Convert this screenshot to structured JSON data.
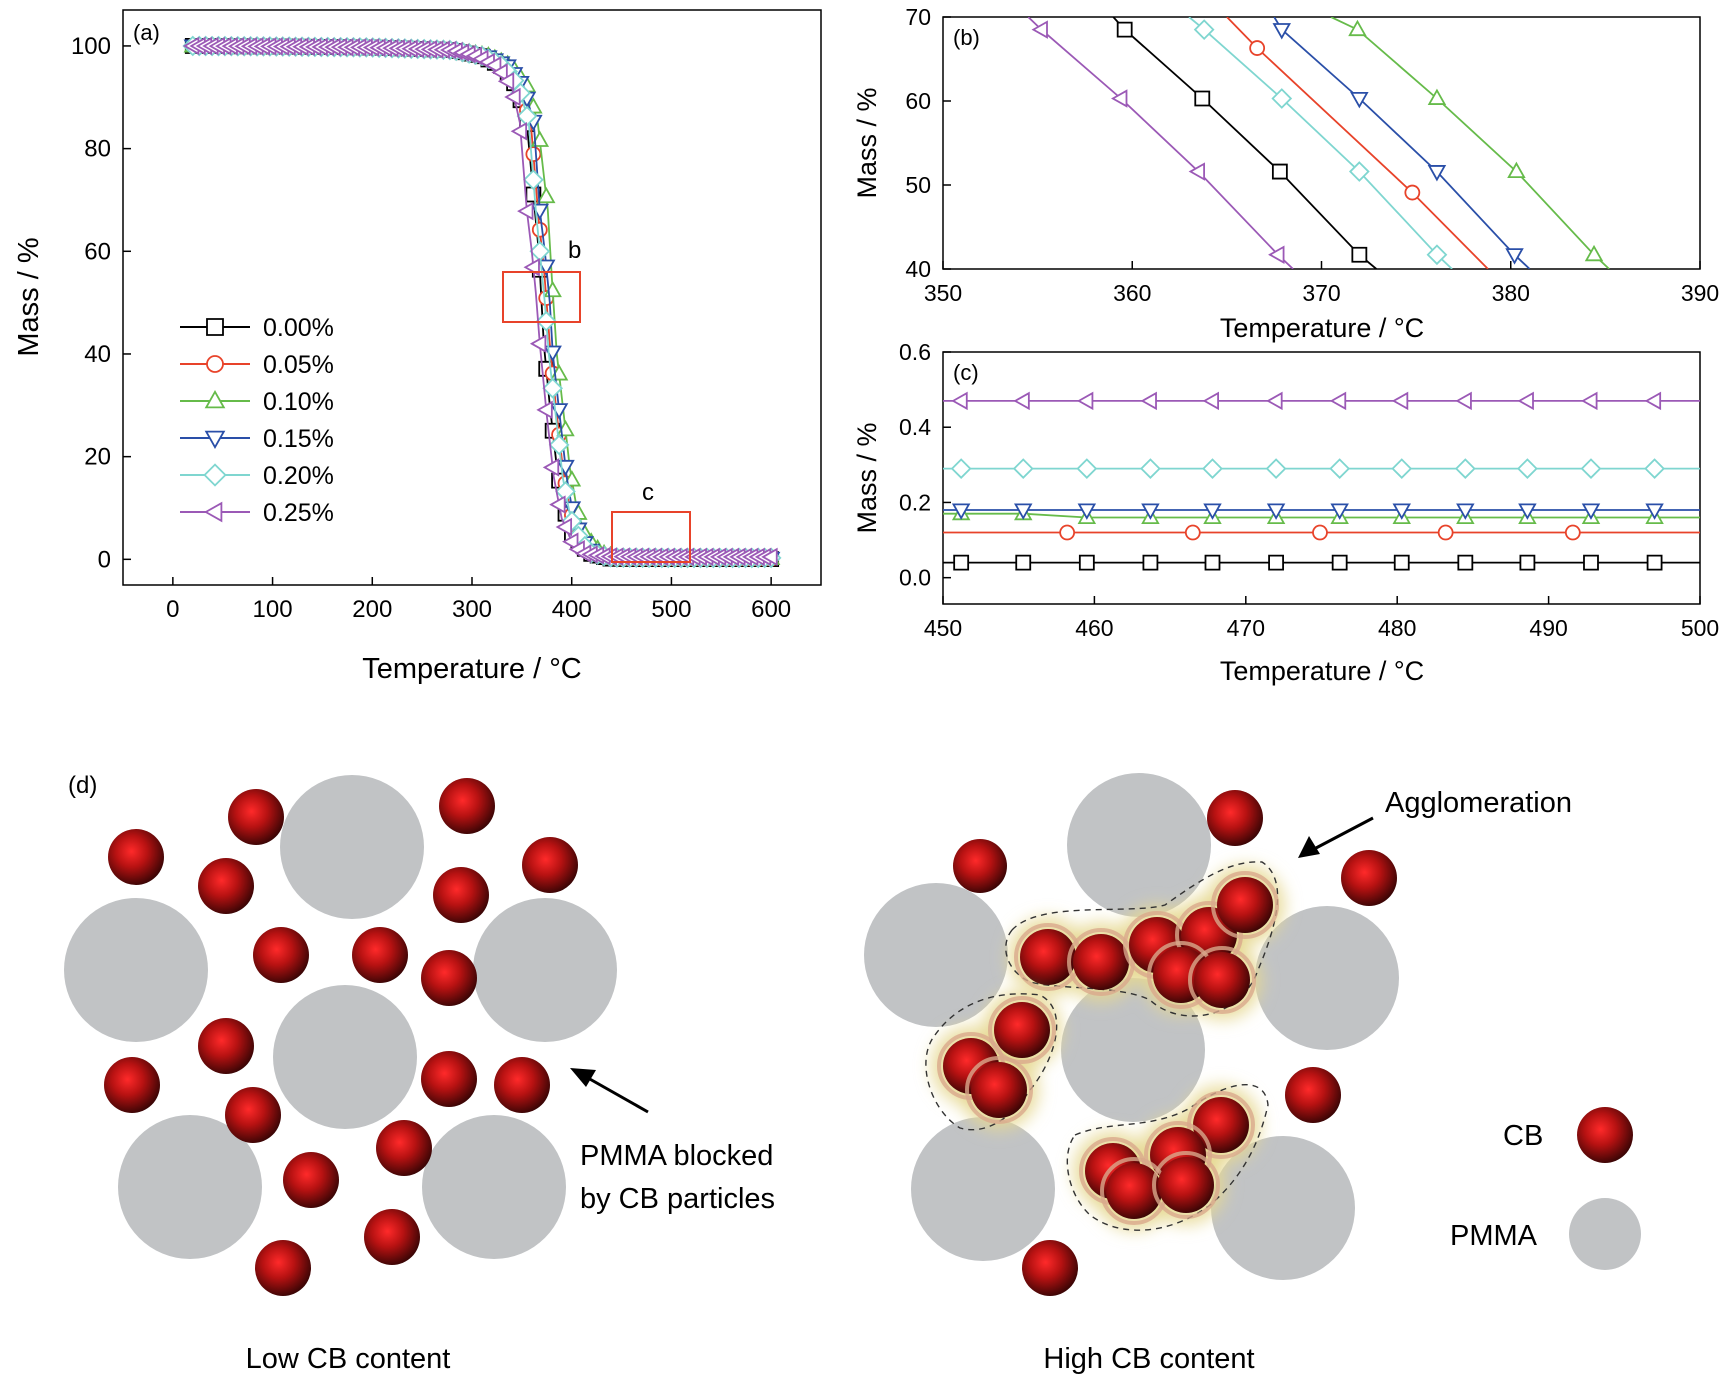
{
  "chart_data": [
    {
      "panel_label": "(a)",
      "type": "scatter",
      "xlabel": "Temperature / °C",
      "ylabel": "Mass / %",
      "xlim": [
        -50,
        650
      ],
      "ylim": [
        -5,
        107
      ],
      "xticks": [
        "0",
        "100",
        "200",
        "300",
        "400",
        "500",
        "600"
      ],
      "yticks": [
        "0",
        "20",
        "40",
        "60",
        "80",
        "100"
      ],
      "legend_position": "center-left",
      "box_labels": [
        "b",
        "c"
      ],
      "series": [
        {
          "name": "0.00%",
          "marker": "square",
          "color": "#000000",
          "x": [
            20,
            100,
            200,
            280,
            310,
            330,
            345,
            355,
            363,
            367,
            372,
            378,
            385,
            392,
            400,
            410,
            420,
            440,
            500,
            600
          ],
          "y": [
            100,
            99.9,
            99.7,
            99.2,
            98,
            96,
            92,
            85,
            68,
            60,
            42,
            30,
            18,
            10,
            5,
            2.5,
            1,
            0.1,
            0.04,
            0.04
          ]
        },
        {
          "name": "0.05%",
          "marker": "circle",
          "color": "#e8432a",
          "x": [
            20,
            100,
            200,
            280,
            312,
            333,
            348,
            359,
            367,
            372,
            378,
            384,
            391,
            398,
            406,
            416,
            426,
            445,
            500,
            600
          ],
          "y": [
            100,
            99.9,
            99.7,
            99.2,
            98,
            96,
            92,
            85,
            66,
            57,
            42,
            30,
            18,
            10,
            5,
            2.5,
            1,
            0.2,
            0.12,
            0.12
          ]
        },
        {
          "name": "0.10%",
          "marker": "triangle-up",
          "color": "#66bb4a",
          "x": [
            20,
            100,
            200,
            280,
            318,
            340,
            356,
            366,
            376,
            380,
            385,
            391,
            398,
            405,
            413,
            423,
            433,
            450,
            500,
            600
          ],
          "y": [
            100,
            99.9,
            99.7,
            99.3,
            98,
            96,
            92,
            85,
            68,
            55,
            40,
            30,
            18,
            10,
            5,
            2.5,
            1,
            0.2,
            0.16,
            0.16
          ]
        },
        {
          "name": "0.15%",
          "marker": "triangle-down",
          "color": "#2a4fa8",
          "x": [
            20,
            100,
            200,
            280,
            315,
            337,
            352,
            362,
            368,
            373,
            378,
            381,
            388,
            395,
            402,
            412,
            422,
            442,
            500,
            600
          ],
          "y": [
            100,
            99.9,
            99.7,
            99.2,
            98,
            96,
            92,
            85,
            68,
            60,
            50,
            40,
            28,
            16,
            8,
            3.5,
            1.2,
            0.25,
            0.18,
            0.18
          ]
        },
        {
          "name": "0.20%",
          "marker": "diamond",
          "color": "#7fd6d0",
          "x": [
            20,
            100,
            200,
            280,
            311,
            332,
            347,
            357,
            364,
            368,
            373,
            377,
            384,
            391,
            399,
            409,
            419,
            440,
            500,
            600
          ],
          "y": [
            100,
            99.9,
            99.7,
            99.2,
            98,
            96,
            92,
            85,
            68,
            60,
            50,
            40,
            28,
            16,
            8,
            3.5,
            1.2,
            0.35,
            0.29,
            0.29
          ]
        },
        {
          "name": "0.25%",
          "marker": "triangle-left",
          "color": "#9b59b6",
          "x": [
            20,
            100,
            200,
            280,
            305,
            325,
            340,
            348,
            355,
            360,
            364,
            368,
            375,
            382,
            390,
            400,
            410,
            435,
            500,
            600
          ],
          "y": [
            100,
            99.9,
            99.7,
            99.2,
            98,
            96,
            92,
            85,
            68,
            60,
            52,
            42,
            28,
            16,
            8,
            3.5,
            1.2,
            0.55,
            0.47,
            0.47
          ]
        }
      ]
    },
    {
      "panel_label": "(b)",
      "type": "line",
      "xlabel": "Temperature / °C",
      "ylabel": "Mass / %",
      "xlim": [
        350,
        390
      ],
      "ylim": [
        40,
        70
      ],
      "xticks": [
        "350",
        "360",
        "370",
        "380",
        "390"
      ],
      "yticks": [
        "40",
        "50",
        "60",
        "70"
      ],
      "series": [
        {
          "name": "0.00%",
          "marker": "square",
          "color": "#000000",
          "x": [
            359,
            359.6,
            363.7,
            367.8,
            372,
            372.9
          ],
          "y": [
            70,
            68.5,
            60.3,
            51.6,
            41.7,
            40
          ]
        },
        {
          "name": "0.05%",
          "marker": "circle",
          "color": "#e8432a",
          "x": [
            365,
            366.6,
            374.8,
            378.8
          ],
          "y": [
            70,
            66.3,
            49.1,
            40
          ]
        },
        {
          "name": "0.10%",
          "marker": "triangle-up",
          "color": "#66bb4a",
          "x": [
            370.5,
            371.9,
            376.1,
            380.3,
            384.4,
            385.2
          ],
          "y": [
            70,
            68.5,
            60.3,
            51.6,
            41.7,
            40
          ]
        },
        {
          "name": "0.15%",
          "marker": "triangle-down",
          "color": "#2a4fa8",
          "x": [
            367.5,
            367.9,
            372,
            376.1,
            380.2,
            381
          ],
          "y": [
            70,
            68.5,
            60.3,
            51.6,
            41.7,
            40
          ]
        },
        {
          "name": "0.20%",
          "marker": "diamond",
          "color": "#7fd6d0",
          "x": [
            363,
            363.8,
            367.9,
            372,
            376.1,
            376.9
          ],
          "y": [
            70,
            68.5,
            60.3,
            51.6,
            41.7,
            40
          ]
        },
        {
          "name": "0.25%",
          "marker": "triangle-left",
          "color": "#9b59b6",
          "x": [
            354.5,
            355.2,
            359.4,
            363.5,
            367.7,
            368.5
          ],
          "y": [
            70,
            68.5,
            60.3,
            51.6,
            41.7,
            40
          ]
        }
      ]
    },
    {
      "panel_label": "(c)",
      "type": "line",
      "xlabel": "Temperature / °C",
      "ylabel": "Mass / %",
      "xlim": [
        450,
        500
      ],
      "ylim": [
        -0.07,
        0.6
      ],
      "xticks": [
        "450",
        "460",
        "470",
        "480",
        "490",
        "500"
      ],
      "yticks": [
        "0.0",
        "0.2",
        "0.4",
        "0.6"
      ],
      "series": [
        {
          "name": "0.00%",
          "marker": "square",
          "color": "#000000",
          "x": [
            450,
            451.2,
            455.3,
            459.5,
            463.7,
            467.8,
            472.0,
            476.2,
            480.3,
            484.5,
            488.6,
            492.8,
            497.0,
            500
          ],
          "y": [
            0.04,
            0.04,
            0.04,
            0.04,
            0.04,
            0.04,
            0.04,
            0.04,
            0.04,
            0.04,
            0.04,
            0.04,
            0.04,
            0.04
          ]
        },
        {
          "name": "0.05%",
          "marker": "circle",
          "color": "#e8432a",
          "x": [
            450,
            458.2,
            466.5,
            474.9,
            483.2,
            491.6,
            500
          ],
          "y": [
            0.12,
            0.12,
            0.12,
            0.12,
            0.12,
            0.12,
            0.12
          ]
        },
        {
          "name": "0.10%",
          "marker": "triangle-up",
          "color": "#66bb4a",
          "x": [
            450,
            451.2,
            455.3,
            459.5,
            463.7,
            467.8,
            472.0,
            476.2,
            480.3,
            484.5,
            488.6,
            492.8,
            497.0,
            500
          ],
          "y": [
            0.17,
            0.17,
            0.17,
            0.16,
            0.16,
            0.16,
            0.16,
            0.16,
            0.16,
            0.16,
            0.16,
            0.16,
            0.16,
            0.16
          ]
        },
        {
          "name": "0.15%",
          "marker": "triangle-down",
          "color": "#2a4fa8",
          "x": [
            450,
            451.2,
            455.3,
            459.5,
            463.7,
            467.8,
            472.0,
            476.2,
            480.3,
            484.5,
            488.6,
            492.8,
            497.0,
            500
          ],
          "y": [
            0.18,
            0.18,
            0.18,
            0.18,
            0.18,
            0.18,
            0.18,
            0.18,
            0.18,
            0.18,
            0.18,
            0.18,
            0.18,
            0.18
          ]
        },
        {
          "name": "0.20%",
          "marker": "diamond",
          "color": "#7fd6d0",
          "x": [
            450,
            451.2,
            455.3,
            459.5,
            463.7,
            467.8,
            472.0,
            476.2,
            480.3,
            484.5,
            488.6,
            492.8,
            497.0,
            500
          ],
          "y": [
            0.29,
            0.29,
            0.29,
            0.29,
            0.29,
            0.29,
            0.29,
            0.29,
            0.29,
            0.29,
            0.29,
            0.29,
            0.29,
            0.29
          ]
        },
        {
          "name": "0.25%",
          "marker": "triangle-left",
          "color": "#9b59b6",
          "x": [
            450,
            451.2,
            455.3,
            459.5,
            463.7,
            467.8,
            472.0,
            476.2,
            480.3,
            484.5,
            488.6,
            492.8,
            497.0,
            500
          ],
          "y": [
            0.47,
            0.47,
            0.47,
            0.47,
            0.47,
            0.47,
            0.47,
            0.47,
            0.47,
            0.47,
            0.47,
            0.47,
            0.47,
            0.47
          ]
        }
      ]
    }
  ],
  "schematic": {
    "panel_label": "(d)",
    "left_caption": "Low CB content",
    "right_caption": "High CB content",
    "left_annotation": [
      "PMMA blocked",
      "by CB particles"
    ],
    "right_annotation": "Agglomeration",
    "legend": {
      "cb_label": "CB",
      "pmma_label": "PMMA"
    },
    "colors": {
      "cb_center": "#ff2a2a",
      "cb_edge": "#3a0505",
      "pmma": "#c1c3c5",
      "highlight": "#e6d890",
      "box": "#e8432a"
    }
  }
}
